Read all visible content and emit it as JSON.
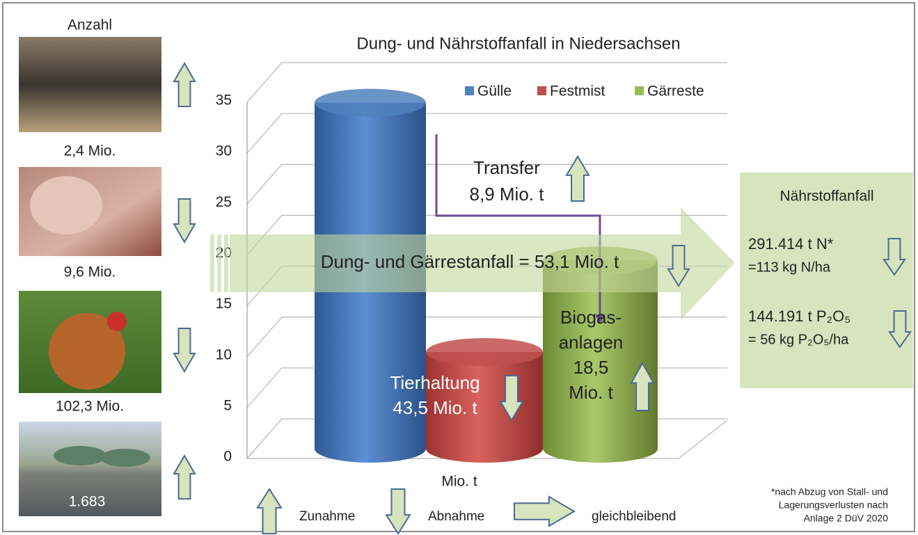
{
  "chart_data": {
    "type": "bar",
    "title": "Dung- und Nährstoffanfall in Niedersachsen",
    "series": [
      {
        "name": "Gülle",
        "color": "#4f81bd",
        "values": [
          34
        ]
      },
      {
        "name": "Festmist",
        "color": "#c0504d",
        "values": [
          9.5
        ]
      },
      {
        "name": "Gärreste",
        "color": "#9bbb59",
        "values": [
          18.5
        ]
      }
    ],
    "ylim": [
      0,
      35
    ],
    "yticks": [
      0,
      5,
      10,
      15,
      20,
      25,
      30,
      35
    ],
    "grid": true,
    "x_label": "Mio. t",
    "legend": "top-right"
  },
  "animals": {
    "header": "Anzahl",
    "items": [
      {
        "count": "2,4 Mio.",
        "trend": "up"
      },
      {
        "count": "9,6 Mio.",
        "trend": "down"
      },
      {
        "count": "102,3 Mio.",
        "trend": "down"
      },
      {
        "count": "1.683",
        "trend": "up"
      }
    ]
  },
  "annotations": {
    "transfer": {
      "lines": [
        "Transfer",
        "8,9 Mio. t"
      ],
      "trend": "up"
    },
    "tierhaltung": {
      "lines": [
        "Tierhaltung",
        "43,5 Mio. t"
      ],
      "trend": "down"
    },
    "biogas": {
      "lines": [
        "Biogas-",
        "anlagen",
        "18,5",
        "Mio. t"
      ],
      "trend": "up"
    },
    "flow": {
      "text": "Dung- und Gärrestanfall = 53,1 Mio. t",
      "trend": "down"
    }
  },
  "nutrients": {
    "title": "Nährstoffanfall",
    "items": [
      {
        "lines": [
          "291.414 t N*",
          "=113 kg N/ha"
        ],
        "trend": "down"
      },
      {
        "lines": [
          "144.191 t P₂O₅",
          "= 56 kg P₂O₅/ha"
        ],
        "trend": "down"
      }
    ]
  },
  "key": [
    {
      "label": "Zunahme",
      "trend": "up"
    },
    {
      "label": "Abnahme",
      "trend": "down"
    },
    {
      "label": "gleichbleibend",
      "trend": "right"
    }
  ],
  "footnote": [
    "*nach Abzug von Stall- und",
    "Lagerungsverlusten nach",
    "Anlage 2 DüV 2020"
  ]
}
